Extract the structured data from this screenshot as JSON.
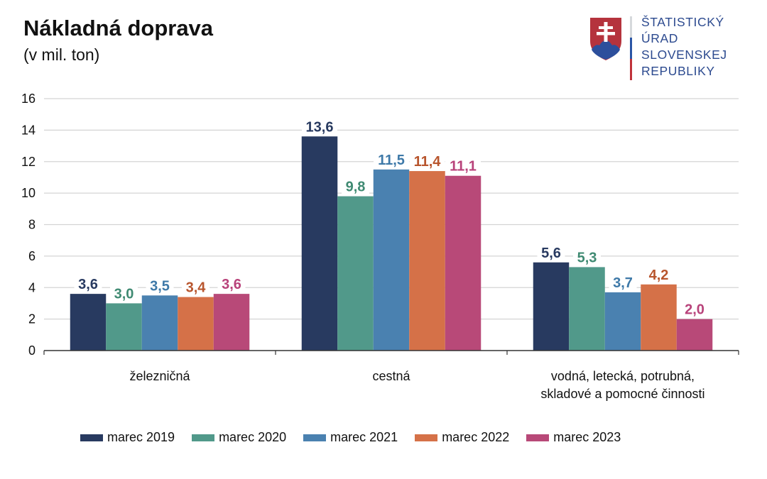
{
  "header": {
    "title": "Nákladná doprava",
    "subtitle": "(v mil. ton)"
  },
  "logo": {
    "icon": "slovak-coat-of-arms-icon",
    "lines": [
      "ŠTATISTICKÝ",
      "ÚRAD",
      "SLOVENSKEJ",
      "REPUBLIKY"
    ],
    "text_color": "#2c4a8f"
  },
  "chart_data": {
    "type": "bar",
    "title": "Nákladná doprava",
    "subtitle": "(v mil. ton)",
    "xlabel": "",
    "ylabel": "",
    "ylim": [
      0,
      16
    ],
    "yticks": [
      0,
      2,
      4,
      6,
      8,
      10,
      12,
      14,
      16
    ],
    "ytick_labels": [
      "0",
      "2",
      "4",
      "6",
      "8",
      "10",
      "12",
      "14",
      "16"
    ],
    "grid": true,
    "legend_position": "bottom",
    "categories": [
      [
        "železničná"
      ],
      [
        "cestná"
      ],
      [
        "vodná, letecká, potrubná,",
        "skladové a pomocné činnosti"
      ]
    ],
    "series": [
      {
        "name": "marec 2019",
        "color": "#283a60",
        "label_color": "#283a60",
        "values": [
          3.6,
          13.6,
          5.6
        ],
        "labels": [
          "3,6",
          "13,6",
          "5,6"
        ]
      },
      {
        "name": "marec 2020",
        "color": "#51998a",
        "label_color": "#3f8a72",
        "values": [
          3.0,
          9.8,
          5.3
        ],
        "labels": [
          "3,0",
          "9,8",
          "5,3"
        ]
      },
      {
        "name": "marec 2021",
        "color": "#4a81b0",
        "label_color": "#3e79a8",
        "values": [
          3.5,
          11.5,
          3.7
        ],
        "labels": [
          "3,5",
          "11,5",
          "3,7"
        ]
      },
      {
        "name": "marec 2022",
        "color": "#d57148",
        "label_color": "#b8552d",
        "values": [
          3.4,
          11.4,
          4.2
        ],
        "labels": [
          "3,4",
          "11,4",
          "4,2"
        ]
      },
      {
        "name": "marec 2023",
        "color": "#b84978",
        "label_color": "#b8427a",
        "values": [
          3.6,
          11.1,
          2.0
        ],
        "labels": [
          "3,6",
          "11,1",
          "2,0"
        ]
      }
    ]
  }
}
